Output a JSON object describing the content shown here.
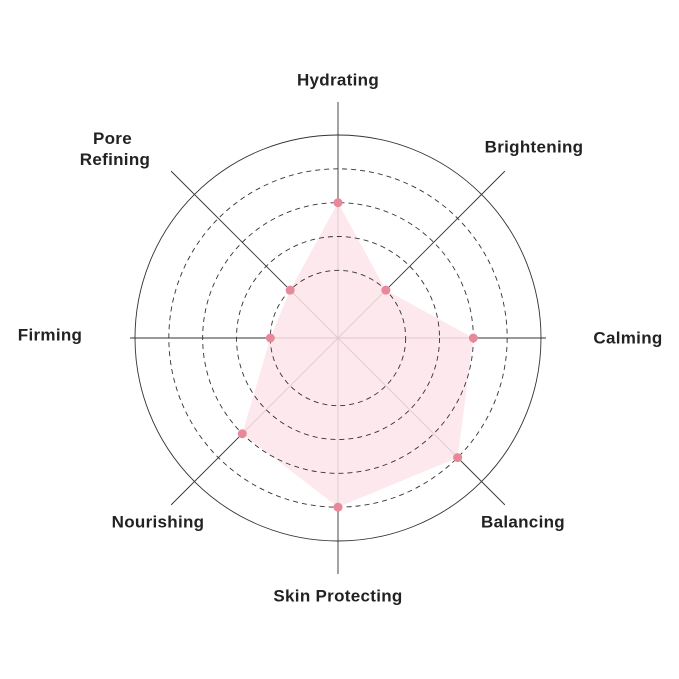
{
  "chart_data": {
    "type": "radar",
    "categories": [
      "Hydrating",
      "Brightening",
      "Calming",
      "Balancing",
      "Skin Protecting",
      "Nourishing",
      "Firming",
      "Pore Refining"
    ],
    "values": [
      4,
      2,
      4,
      5,
      5,
      4,
      2,
      2
    ],
    "rlim": [
      0,
      6
    ],
    "rticks": [
      2,
      3,
      4,
      5
    ],
    "color": "#e8899a",
    "fill": "#fde4ea"
  }
}
